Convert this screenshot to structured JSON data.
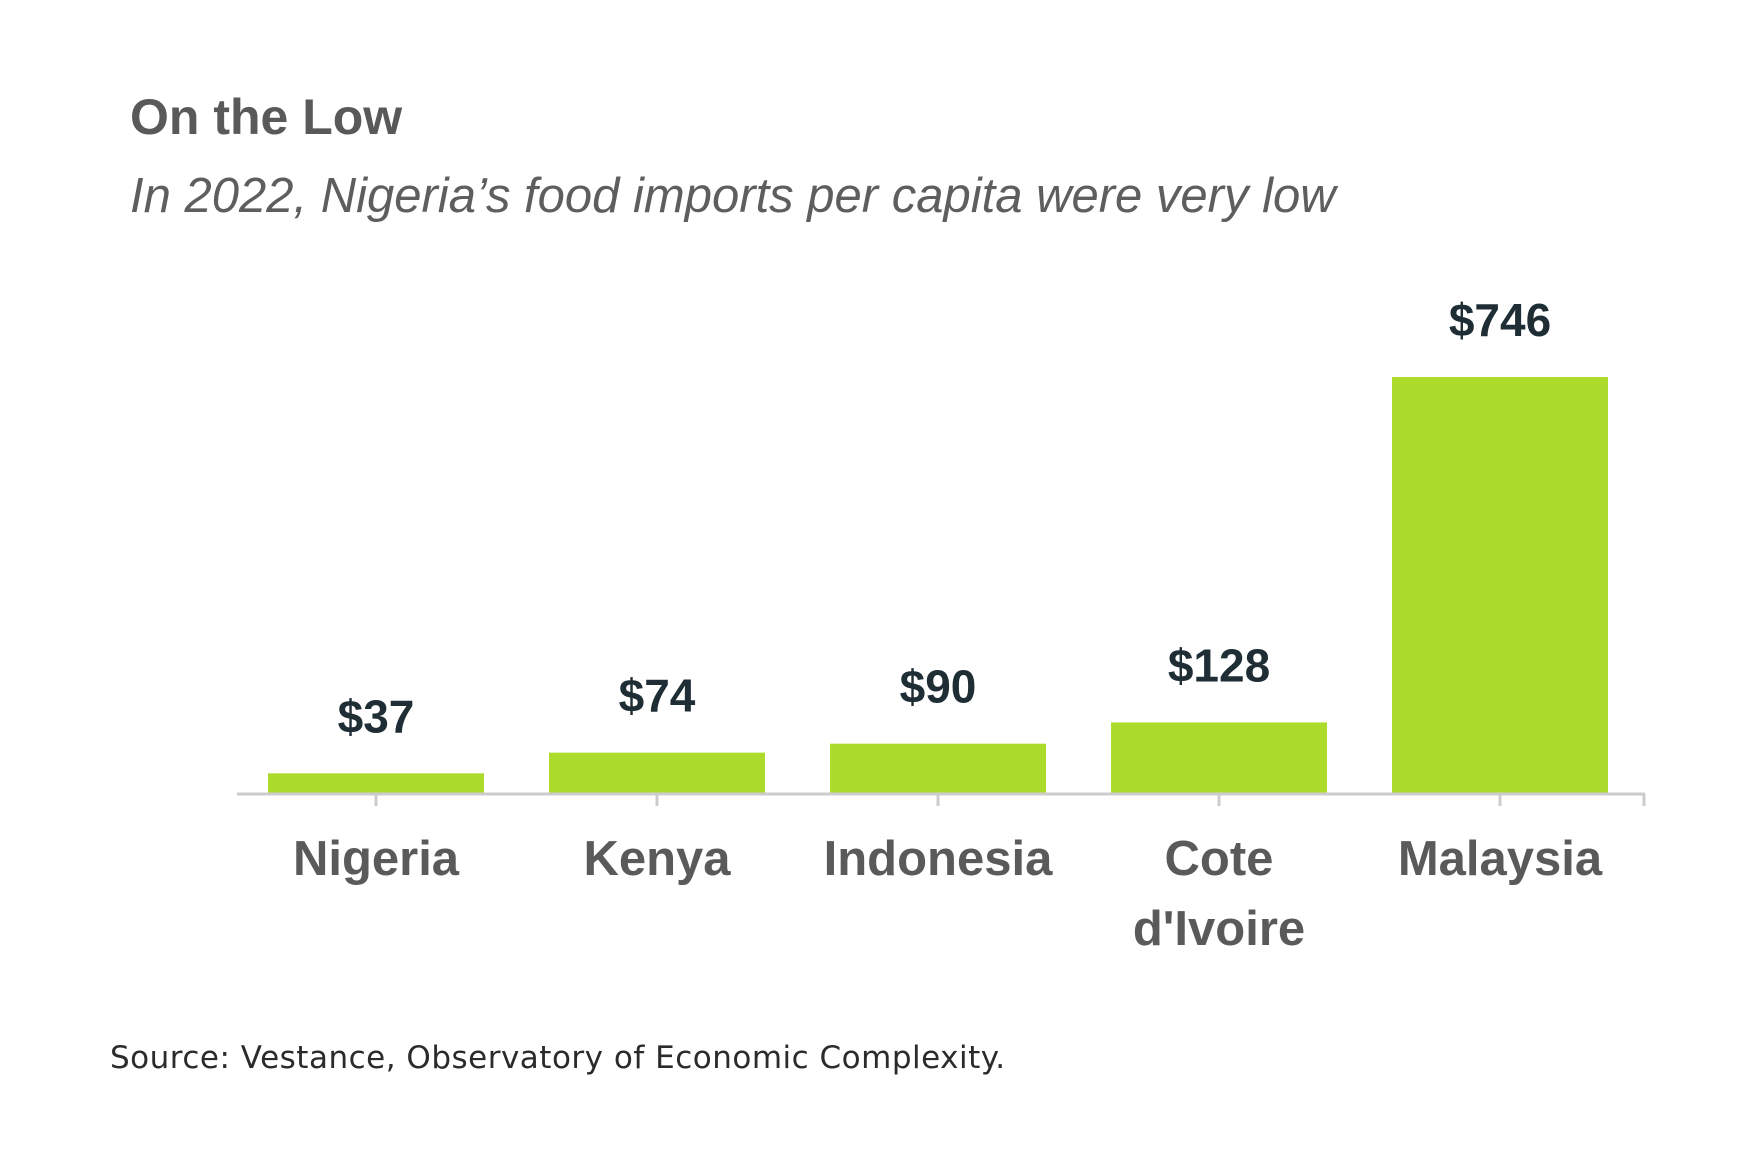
{
  "chart_data": {
    "type": "bar",
    "title": "On the Low",
    "subtitle": "In 2022, Nigeria’s food imports per capita were very low",
    "categories": [
      [
        "Nigeria"
      ],
      [
        "Kenya"
      ],
      [
        "Indonesia"
      ],
      [
        "Cote",
        "d'Ivoire"
      ],
      [
        "Malaysia"
      ]
    ],
    "values": [
      37,
      74,
      90,
      128,
      746
    ],
    "data_labels": [
      "$37",
      "$74",
      "$90",
      "$128",
      "$746"
    ],
    "xlabel": "",
    "ylabel": "",
    "ylim": [
      0,
      746
    ],
    "grid": false,
    "legend": "none",
    "colors": {
      "bar": "#addb2c",
      "axis": "#cccccc"
    }
  },
  "source": "Source: Vestance, Observatory of Economic Complexity."
}
